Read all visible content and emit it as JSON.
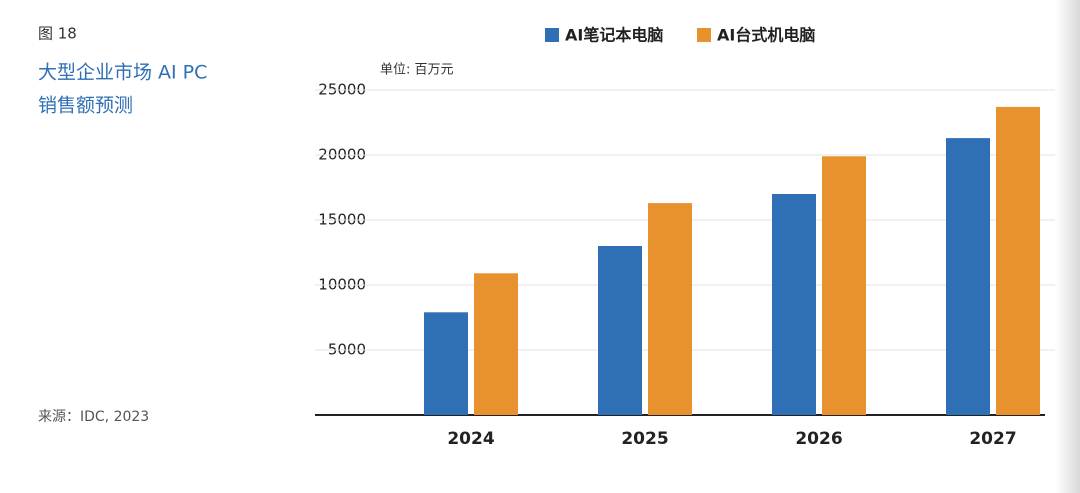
{
  "chart_data": {
    "type": "bar",
    "figure_label": "图 18",
    "title": [
      "大型企业市场 AI PC",
      "销售额预测"
    ],
    "unit": "单位: 百万元",
    "source": "来源：IDC, 2023",
    "categories": [
      "2024",
      "2025",
      "2026",
      "2027"
    ],
    "series": [
      {
        "name": "AI笔记本电脑",
        "color": "#2f6fb5",
        "values": [
          7900,
          13000,
          17000,
          21300
        ]
      },
      {
        "name": "AI台式机电脑",
        "color": "#e8912f",
        "values": [
          10900,
          16300,
          19900,
          23700
        ]
      }
    ],
    "ylim": [
      0,
      25000
    ],
    "yticks": [
      5000,
      10000,
      15000,
      20000,
      25000
    ],
    "grid": true
  }
}
